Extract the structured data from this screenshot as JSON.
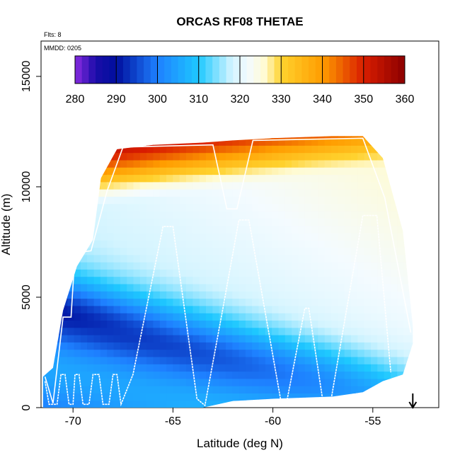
{
  "chart_data": {
    "type": "heatmap",
    "title": "ORCAS RF08 THETAE",
    "annotations": {
      "flights": "Flts: 8",
      "date": "MMDD: 0205"
    },
    "xlabel": "Latitude (deg N)",
    "ylabel": "Altitude (m)",
    "xlim": [
      -71.6,
      -51.7
    ],
    "ylim": [
      0,
      16600
    ],
    "x_ticks": [
      -70,
      -65,
      -60,
      -55
    ],
    "x_tick_labels": [
      "-70",
      "-65",
      "-60",
      "-55"
    ],
    "y_ticks": [
      0,
      5000,
      10000,
      15000
    ],
    "y_tick_labels": [
      "0",
      "5000",
      "10000",
      "15000"
    ],
    "colorbar": {
      "range": [
        280,
        360
      ],
      "ticks": [
        280,
        290,
        300,
        310,
        320,
        330,
        340,
        350,
        360
      ],
      "tick_labels": [
        "280",
        "290",
        "300",
        "310",
        "320",
        "330",
        "340",
        "350",
        "360"
      ],
      "placement": "top-inside"
    },
    "arrow_marker_latitude": -53.0,
    "coverage_envelope": [
      {
        "lat": -71.5,
        "alt_min": 0,
        "alt_max": 1400
      },
      {
        "lat": -71.0,
        "alt_min": 0,
        "alt_max": 1800
      },
      {
        "lat": -70.5,
        "alt_min": 0,
        "alt_max": 4400
      },
      {
        "lat": -69.8,
        "alt_min": 0,
        "alt_max": 6400
      },
      {
        "lat": -69.0,
        "alt_min": 0,
        "alt_max": 7600
      },
      {
        "lat": -68.6,
        "alt_min": 0,
        "alt_max": 10400
      },
      {
        "lat": -67.8,
        "alt_min": 0,
        "alt_max": 11700
      },
      {
        "lat": -66.0,
        "alt_min": 0,
        "alt_max": 11900
      },
      {
        "lat": -63.5,
        "alt_min": 0,
        "alt_max": 12000
      },
      {
        "lat": -62.0,
        "alt_min": 300,
        "alt_max": 12100
      },
      {
        "lat": -60.0,
        "alt_min": 400,
        "alt_max": 12200
      },
      {
        "lat": -57.0,
        "alt_min": 500,
        "alt_max": 12300
      },
      {
        "lat": -55.5,
        "alt_min": 700,
        "alt_max": 12300
      },
      {
        "lat": -54.5,
        "alt_min": 1200,
        "alt_max": 11300
      },
      {
        "lat": -53.5,
        "alt_min": 1500,
        "alt_max": 8000
      },
      {
        "lat": -53.0,
        "alt_min": 2900,
        "alt_max": 3700
      }
    ],
    "flight_track": [
      {
        "lat": -71.4,
        "alt": 1200
      },
      {
        "lat": -71.2,
        "alt": 150
      },
      {
        "lat": -70.8,
        "alt": 150
      },
      {
        "lat": -70.6,
        "alt": 1500
      },
      {
        "lat": -70.4,
        "alt": 1500
      },
      {
        "lat": -70.2,
        "alt": 150
      },
      {
        "lat": -70.0,
        "alt": 150
      },
      {
        "lat": -69.9,
        "alt": 1500
      },
      {
        "lat": -69.7,
        "alt": 1500
      },
      {
        "lat": -69.5,
        "alt": 150
      },
      {
        "lat": -69.2,
        "alt": 150
      },
      {
        "lat": -69.0,
        "alt": 1500
      },
      {
        "lat": -68.7,
        "alt": 1500
      },
      {
        "lat": -68.5,
        "alt": 150
      },
      {
        "lat": -68.2,
        "alt": 150
      },
      {
        "lat": -68.0,
        "alt": 1500
      },
      {
        "lat": -67.8,
        "alt": 1500
      },
      {
        "lat": -67.6,
        "alt": 150
      },
      {
        "lat": -67.0,
        "alt": 1500
      },
      {
        "lat": -65.5,
        "alt": 8200
      },
      {
        "lat": -65.0,
        "alt": 8200
      },
      {
        "lat": -63.8,
        "alt": 400
      },
      {
        "lat": -63.4,
        "alt": 100
      },
      {
        "lat": -62.5,
        "alt": 4500
      },
      {
        "lat": -61.7,
        "alt": 8500
      },
      {
        "lat": -61.2,
        "alt": 8500
      },
      {
        "lat": -59.6,
        "alt": 300
      },
      {
        "lat": -59.3,
        "alt": 300
      },
      {
        "lat": -58.4,
        "alt": 4500
      },
      {
        "lat": -58.2,
        "alt": 4500
      },
      {
        "lat": -57.5,
        "alt": 300
      },
      {
        "lat": -57.1,
        "alt": 300
      },
      {
        "lat": -55.5,
        "alt": 8700
      },
      {
        "lat": -54.8,
        "alt": 8700
      },
      {
        "lat": -54.1,
        "alt": 1600
      }
    ],
    "flight_track_upper": [
      {
        "lat": -71.4,
        "alt": 1400
      },
      {
        "lat": -71.0,
        "alt": 200
      },
      {
        "lat": -70.5,
        "alt": 4100
      },
      {
        "lat": -70.1,
        "alt": 4100
      },
      {
        "lat": -69.9,
        "alt": 7000
      },
      {
        "lat": -69.1,
        "alt": 7100
      },
      {
        "lat": -68.3,
        "alt": 9800
      },
      {
        "lat": -67.5,
        "alt": 11800
      },
      {
        "lat": -63.0,
        "alt": 11900
      },
      {
        "lat": -62.3,
        "alt": 9000
      },
      {
        "lat": -61.8,
        "alt": 9000
      },
      {
        "lat": -61.0,
        "alt": 12100
      },
      {
        "lat": -55.5,
        "alt": 12200
      },
      {
        "lat": -54.4,
        "alt": 9500
      },
      {
        "lat": -53.1,
        "alt": 3400
      }
    ]
  }
}
